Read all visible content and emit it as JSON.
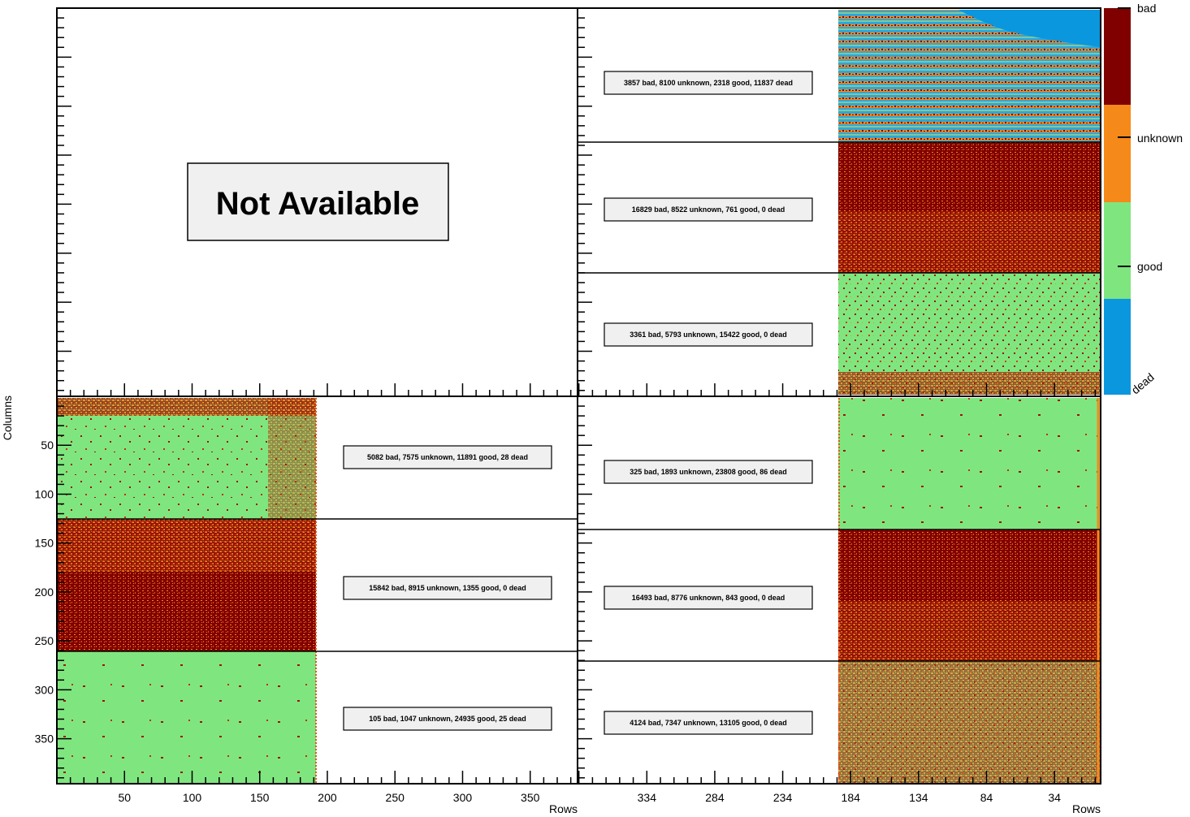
{
  "chart_data": {
    "type": "heatmap",
    "title": "",
    "ylabel": "Columns",
    "color_scale": {
      "labels": [
        "bad",
        "unknown",
        "good",
        "dead"
      ],
      "colors": {
        "bad": "#800000",
        "unknown": "#f5891a",
        "good": "#7fe67f",
        "dead": "#0b97de"
      }
    },
    "panels": [
      {
        "id": "top-left",
        "not_available": true,
        "message": "Not Available"
      },
      {
        "id": "top-right",
        "xlabel": "",
        "chips": [
          {
            "label": "3857 bad, 8100 unknown, 2318 good, 11837 dead",
            "bad": 3857,
            "unknown": 8100,
            "good": 2318,
            "dead": 11837
          },
          {
            "label": "16829 bad, 8522 unknown, 761 good, 0 dead",
            "bad": 16829,
            "unknown": 8522,
            "good": 761,
            "dead": 0
          },
          {
            "label": "3361 bad, 5793 unknown, 15422 good, 0 dead",
            "bad": 3361,
            "unknown": 5793,
            "good": 15422,
            "dead": 0
          }
        ]
      },
      {
        "id": "bottom-left",
        "xlabel": "Rows",
        "x_ticks": [
          50,
          100,
          150,
          200,
          250,
          300,
          350
        ],
        "y_ticks": [
          50,
          100,
          150,
          200,
          250,
          300,
          350
        ],
        "xlim": [
          0,
          385
        ],
        "ylim": [
          0,
          396
        ],
        "chips": [
          {
            "label": "5082 bad, 7575 unknown, 11891 good, 28 dead",
            "bad": 5082,
            "unknown": 7575,
            "good": 11891,
            "dead": 28
          },
          {
            "label": "15842 bad, 8915 unknown, 1355 good, 0 dead",
            "bad": 15842,
            "unknown": 8915,
            "good": 1355,
            "dead": 0
          },
          {
            "label": "105 bad, 1047 unknown, 24935 good, 25 dead",
            "bad": 105,
            "unknown": 1047,
            "good": 24935,
            "dead": 25
          }
        ]
      },
      {
        "id": "bottom-right",
        "xlabel": "Rows",
        "x_ticks": [
          334,
          284,
          234,
          184,
          134,
          84,
          34
        ],
        "xlim": [
          385,
          0
        ],
        "chips": [
          {
            "label": "325 bad, 1893 unknown, 23808 good, 86 dead",
            "bad": 325,
            "unknown": 1893,
            "good": 23808,
            "dead": 86
          },
          {
            "label": "16493 bad, 8776 unknown, 843 good, 0 dead",
            "bad": 16493,
            "unknown": 8776,
            "good": 843,
            "dead": 0
          },
          {
            "label": "4124 bad, 7347 unknown, 13105 good, 0 dead",
            "bad": 4124,
            "unknown": 7347,
            "good": 13105,
            "dead": 0
          }
        ]
      }
    ]
  }
}
